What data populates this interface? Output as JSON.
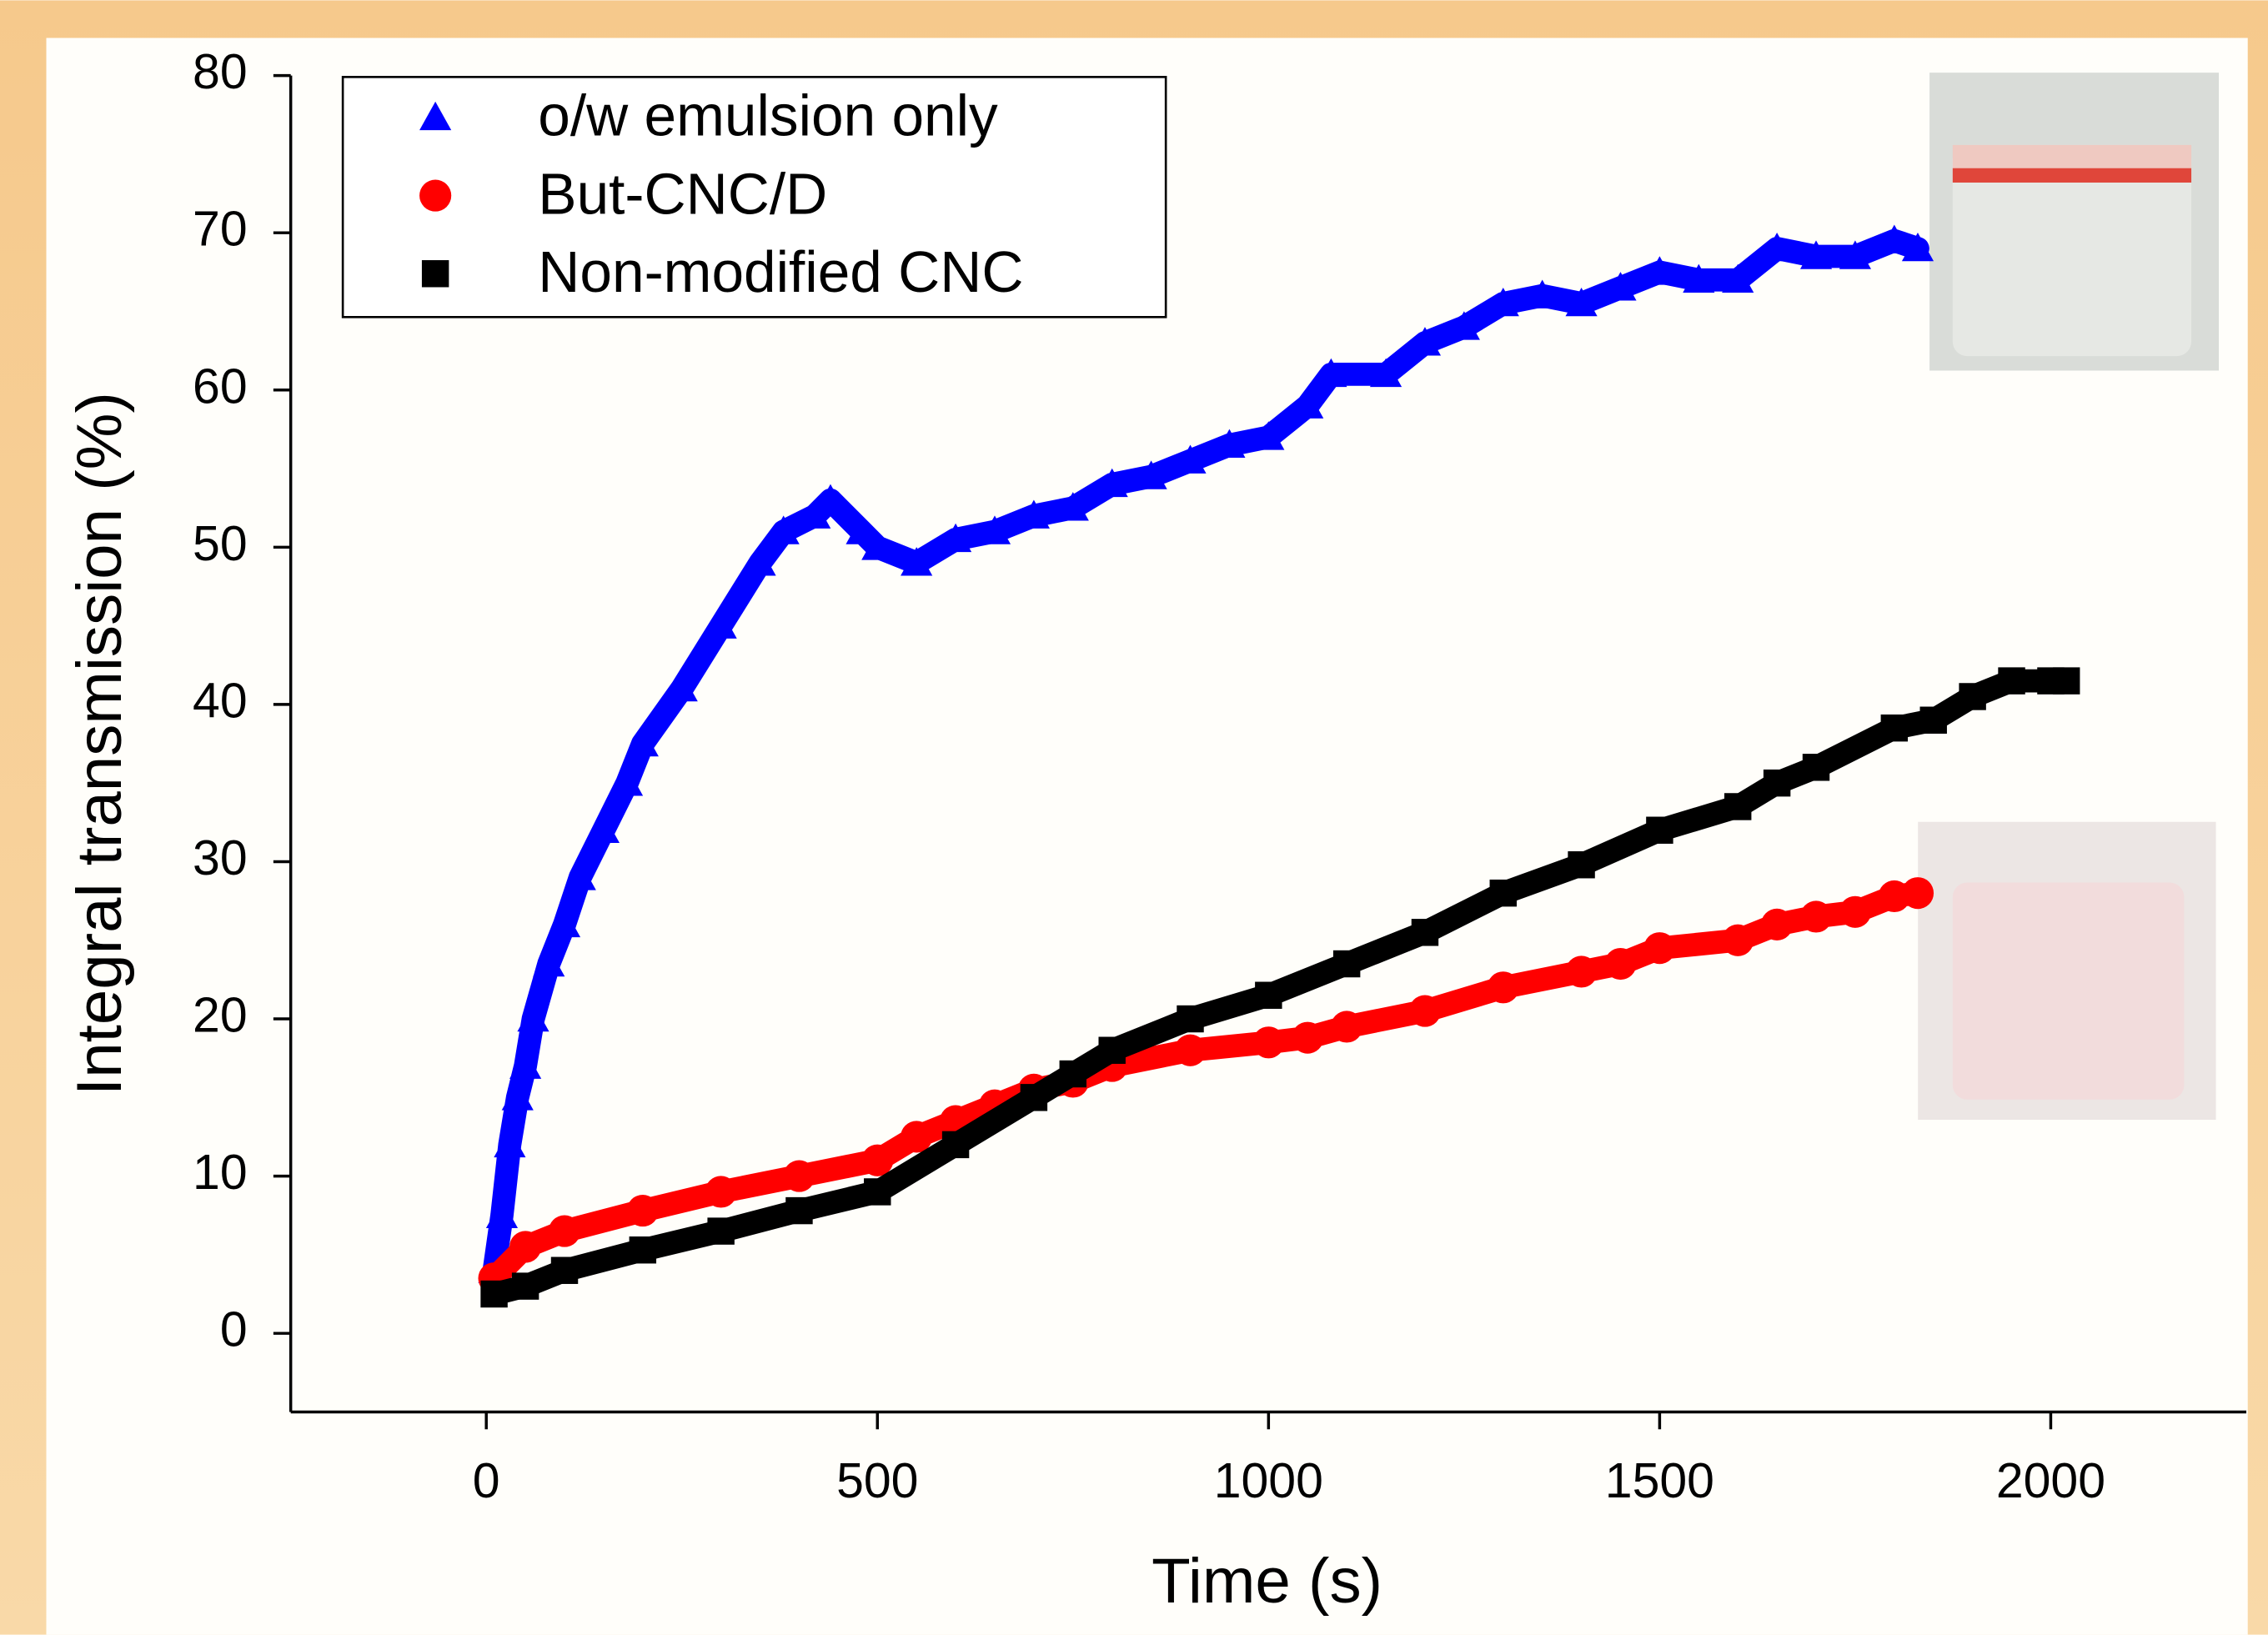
{
  "chart_data": {
    "type": "scatter",
    "xlabel": "Time (s)",
    "ylabel": "Integral transmission (%)",
    "xlim": [
      -250,
      2250
    ],
    "ylim": [
      -5,
      80
    ],
    "xticks": [
      0,
      500,
      1000,
      1500,
      2000
    ],
    "yticks": [
      0,
      10,
      20,
      30,
      40,
      50,
      60,
      70,
      80
    ],
    "legend": "upper left",
    "series": [
      {
        "name": "o/w emulsion only",
        "color": "#0000ff",
        "marker": "triangle",
        "x": [
          10,
          20,
          30,
          40,
          50,
          60,
          80,
          100,
          120,
          150,
          180,
          200,
          250,
          300,
          350,
          380,
          420,
          440,
          480,
          500,
          550,
          600,
          650,
          700,
          750,
          800,
          850,
          900,
          950,
          1000,
          1050,
          1080,
          1150,
          1200,
          1250,
          1300,
          1350,
          1400,
          1450,
          1500,
          1550,
          1600,
          1650,
          1700,
          1750,
          1800,
          1830
        ],
        "values": [
          4,
          7.5,
          12,
          15,
          17,
          20,
          23.5,
          26,
          29,
          32,
          35,
          37.5,
          41,
          45,
          49,
          51,
          52,
          53,
          51,
          50,
          49,
          50.5,
          51,
          52,
          52.5,
          54,
          54.5,
          55.5,
          56.5,
          57,
          59,
          61,
          61,
          63,
          64,
          65.5,
          66,
          65.5,
          66.5,
          67.5,
          67,
          67,
          69,
          68.5,
          68.5,
          69.5,
          69
        ]
      },
      {
        "name": "But-CNC/D",
        "color": "#ff0000",
        "marker": "circle",
        "x": [
          10,
          50,
          100,
          200,
          300,
          400,
          500,
          550,
          600,
          650,
          700,
          750,
          800,
          900,
          1000,
          1050,
          1100,
          1200,
          1300,
          1400,
          1450,
          1500,
          1600,
          1650,
          1700,
          1750,
          1800,
          1830
        ],
        "values": [
          3.5,
          5.5,
          6.5,
          7.8,
          9,
          10,
          11,
          12.5,
          13.5,
          14.5,
          15.5,
          16,
          17,
          18,
          18.5,
          18.8,
          19.5,
          20.5,
          22,
          23,
          23.5,
          24.5,
          25,
          26,
          26.5,
          26.8,
          27.8,
          28
        ]
      },
      {
        "name": "Non-modified CNC",
        "color": "#000000",
        "marker": "square",
        "x": [
          10,
          50,
          100,
          200,
          300,
          400,
          500,
          600,
          700,
          750,
          800,
          900,
          1000,
          1100,
          1200,
          1300,
          1400,
          1500,
          1600,
          1650,
          1700,
          1800,
          1850,
          1900,
          1950,
          2000,
          2020
        ],
        "values": [
          2.5,
          3,
          4,
          5.3,
          6.5,
          7.8,
          9,
          12,
          15,
          16.5,
          18,
          20,
          21.5,
          23.5,
          25.5,
          28,
          29.8,
          32,
          33.5,
          35,
          36,
          38.5,
          39,
          40.5,
          41.5,
          41.5,
          41.5
        ]
      }
    ]
  }
}
